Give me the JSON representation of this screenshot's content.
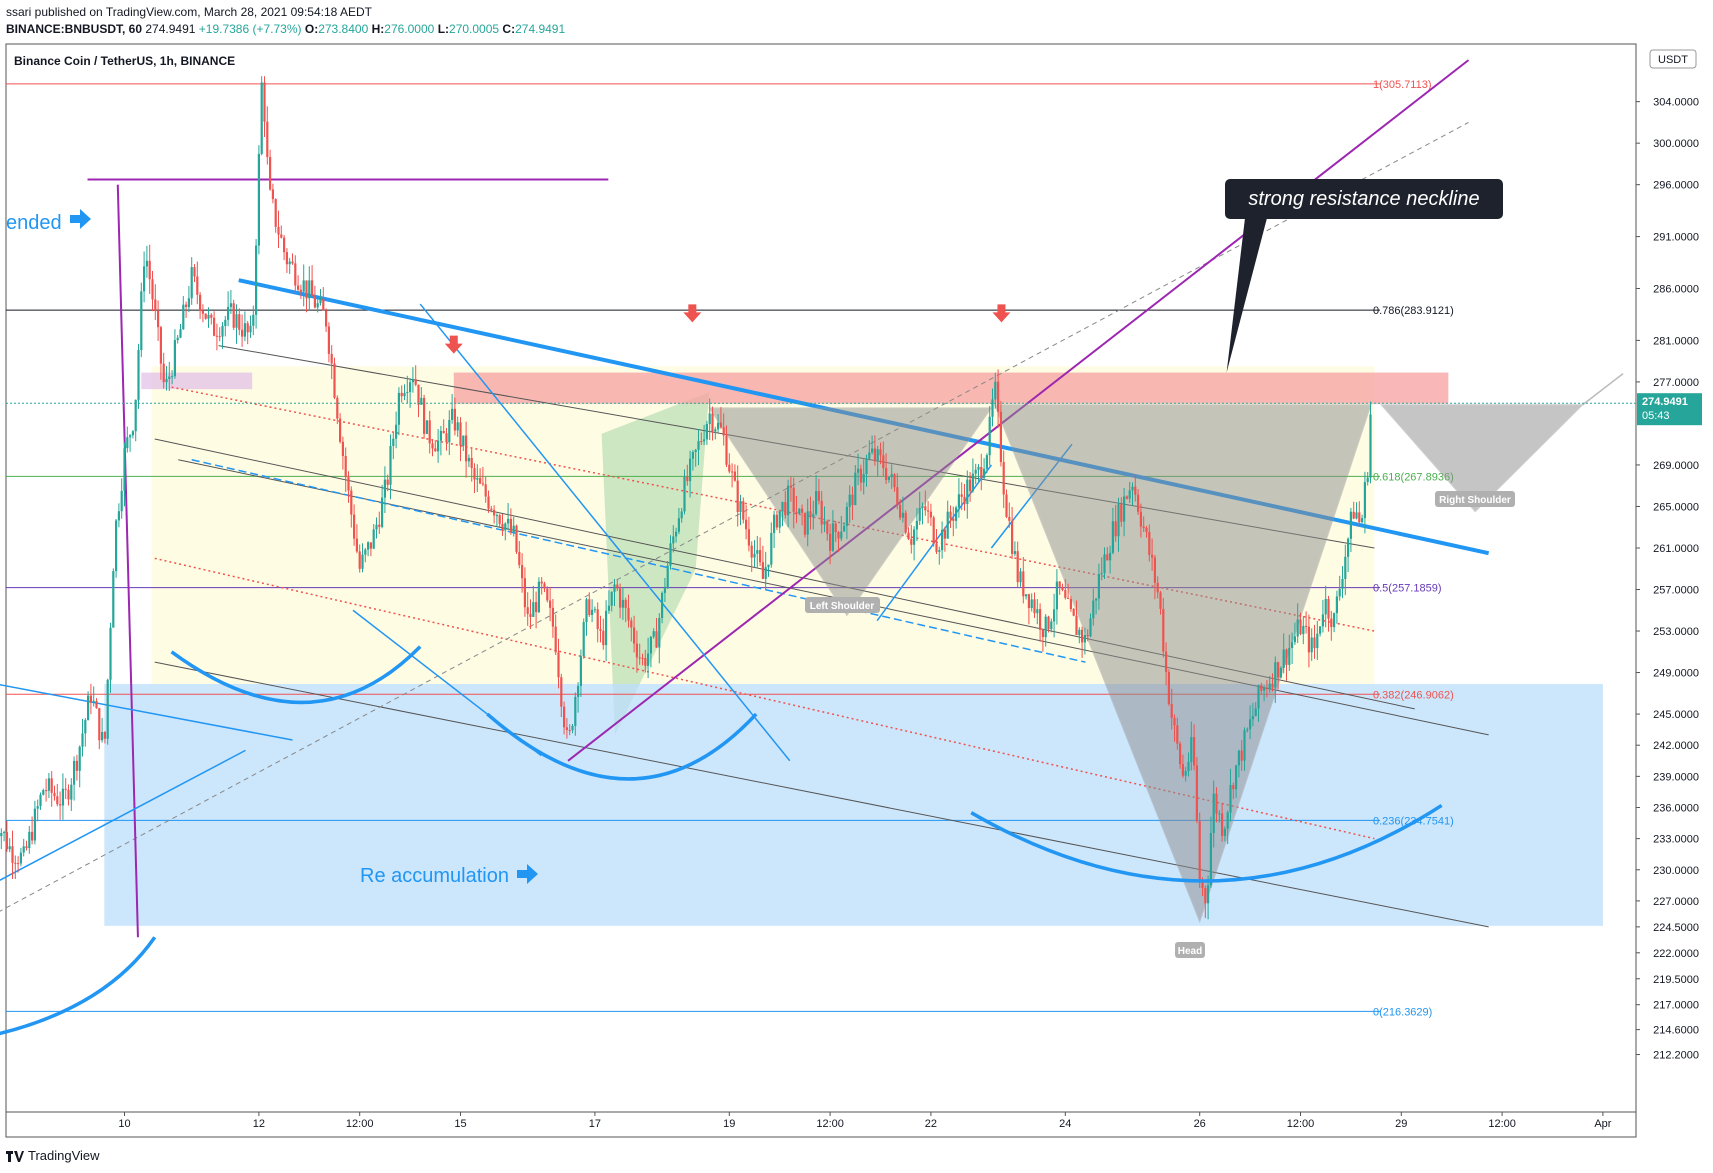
{
  "header": {
    "published": "ssari published on TradingView.com, March 28, 2021 09:54:18 AEDT",
    "symbol": "BINANCE:BNBUSDT, 60",
    "last": "274.9491",
    "change": "+19.7386 (+7.73%)",
    "o_label": "O:",
    "o": "273.8400",
    "h_label": "H:",
    "h": "276.0000",
    "l_label": "L:",
    "l": "270.0005",
    "c_label": "C:",
    "c": "274.9491"
  },
  "footer": {
    "brand": "TradingView"
  },
  "colors": {
    "up": "#26a69a",
    "down": "#ef5350",
    "blue": "#2196f3",
    "purple": "#9c27b0",
    "resistance": "#f8a5a5",
    "accum": "#bbdefb",
    "green_zone": "#c8e6c9"
  },
  "chart_data": {
    "type": "candlestick",
    "title": "Binance Coin / TetherUS, 1h, BINANCE",
    "currency": "USDT",
    "ylim": [
      210.5,
      308.5
    ],
    "y_ticks": [
      212.2,
      214.6,
      217.0,
      219.5,
      222.0,
      224.5,
      227.0,
      230.0,
      233.0,
      236.0,
      239.0,
      242.0,
      245.0,
      249.0,
      253.0,
      257.0,
      261.0,
      265.0,
      269.0,
      277.0,
      281.0,
      286.0,
      291.0,
      296.0,
      300.0,
      304.0
    ],
    "y_tick_labels": [
      "212.2000",
      "214.6000",
      "217.0000",
      "219.5000",
      "222.0000",
      "224.5000",
      "227.0000",
      "230.0000",
      "233.0000",
      "236.0000",
      "239.0000",
      "242.0000",
      "245.0000",
      "249.0000",
      "253.0000",
      "257.0000",
      "261.0000",
      "265.0000",
      "269.0000",
      "277.0000",
      "281.0000",
      "286.0000",
      "291.0000",
      "296.0000",
      "300.0000",
      "304.0000"
    ],
    "x_ticks": [
      {
        "label": "10",
        "t": 10.0
      },
      {
        "label": "12",
        "t": 12.0
      },
      {
        "label": "12:00",
        "t": 13.5
      },
      {
        "label": "15",
        "t": 15.0
      },
      {
        "label": "17",
        "t": 17.0
      },
      {
        "label": "19",
        "t": 19.0
      },
      {
        "label": "12:00",
        "t": 20.5
      },
      {
        "label": "22",
        "t": 22.0
      },
      {
        "label": "24",
        "t": 24.0
      },
      {
        "label": "26",
        "t": 26.0
      },
      {
        "label": "12:00",
        "t": 27.5
      },
      {
        "label": "29",
        "t": 29.0
      },
      {
        "label": "12:00",
        "t": 30.5
      },
      {
        "label": "Apr",
        "t": 32.0
      }
    ],
    "price_path": [
      [
        8.0,
        236.0
      ],
      [
        8.3,
        232.0
      ],
      [
        8.5,
        231.0
      ],
      [
        8.8,
        238.0
      ],
      [
        9.1,
        236.5
      ],
      [
        9.3,
        241.0
      ],
      [
        9.5,
        247.0
      ],
      [
        9.7,
        241.5
      ],
      [
        9.85,
        262.0
      ],
      [
        10.0,
        270.0
      ],
      [
        10.15,
        274.0
      ],
      [
        10.3,
        290.0
      ],
      [
        10.4,
        286.0
      ],
      [
        10.6,
        276.0
      ],
      [
        10.8,
        281.0
      ],
      [
        11.0,
        287.0
      ],
      [
        11.3,
        282.0
      ],
      [
        11.6,
        283.5
      ],
      [
        11.9,
        281.0
      ],
      [
        12.05,
        307.0
      ],
      [
        12.15,
        295.0
      ],
      [
        12.4,
        289.0
      ],
      [
        12.7,
        286.0
      ],
      [
        13.0,
        283.0
      ],
      [
        13.3,
        267.5
      ],
      [
        13.5,
        259.0
      ],
      [
        13.7,
        262.0
      ],
      [
        13.9,
        267.0
      ],
      [
        14.1,
        276.5
      ],
      [
        14.3,
        278.0
      ],
      [
        14.5,
        272.0
      ],
      [
        14.7,
        271.0
      ],
      [
        14.9,
        273.5
      ],
      [
        15.2,
        267.5
      ],
      [
        15.5,
        265.0
      ],
      [
        15.8,
        262.0
      ],
      [
        16.0,
        254.0
      ],
      [
        16.2,
        257.0
      ],
      [
        16.4,
        253.0
      ],
      [
        16.5,
        247.0
      ],
      [
        16.6,
        241.5
      ],
      [
        16.75,
        249.0
      ],
      [
        16.9,
        256.0
      ],
      [
        17.1,
        252.0
      ],
      [
        17.3,
        257.5
      ],
      [
        17.5,
        254.0
      ],
      [
        17.7,
        250.0
      ],
      [
        17.9,
        252.0
      ],
      [
        18.1,
        260.0
      ],
      [
        18.3,
        266.0
      ],
      [
        18.5,
        270.0
      ],
      [
        18.7,
        274.0
      ],
      [
        18.9,
        272.0
      ],
      [
        19.1,
        266.0
      ],
      [
        19.3,
        262.0
      ],
      [
        19.5,
        258.0
      ],
      [
        19.7,
        264.0
      ],
      [
        19.9,
        266.0
      ],
      [
        20.1,
        263.0
      ],
      [
        20.3,
        265.5
      ],
      [
        20.5,
        262.0
      ],
      [
        20.7,
        263.5
      ],
      [
        20.9,
        267.5
      ],
      [
        21.1,
        270.0
      ],
      [
        21.3,
        269.0
      ],
      [
        21.5,
        266.0
      ],
      [
        21.7,
        262.0
      ],
      [
        21.9,
        265.0
      ],
      [
        22.1,
        261.5
      ],
      [
        22.3,
        264.0
      ],
      [
        22.5,
        266.5
      ],
      [
        22.7,
        268.0
      ],
      [
        22.85,
        271.0
      ],
      [
        22.95,
        276.5
      ],
      [
        23.1,
        266.0
      ],
      [
        23.3,
        258.0
      ],
      [
        23.5,
        256.0
      ],
      [
        23.7,
        253.0
      ],
      [
        23.9,
        257.0
      ],
      [
        24.1,
        254.0
      ],
      [
        24.3,
        252.0
      ],
      [
        24.5,
        258.0
      ],
      [
        24.7,
        262.5
      ],
      [
        24.9,
        266.0
      ],
      [
        25.0,
        267.5
      ],
      [
        25.2,
        262.0
      ],
      [
        25.4,
        256.0
      ],
      [
        25.5,
        249.0
      ],
      [
        25.6,
        244.0
      ],
      [
        25.75,
        239.0
      ],
      [
        25.9,
        242.0
      ],
      [
        26.0,
        229.0
      ],
      [
        26.1,
        227.0
      ],
      [
        26.2,
        237.0
      ],
      [
        26.35,
        234.0
      ],
      [
        26.5,
        239.0
      ],
      [
        26.7,
        243.0
      ],
      [
        26.9,
        247.0
      ],
      [
        27.1,
        249.0
      ],
      [
        27.3,
        251.0
      ],
      [
        27.5,
        253.5
      ],
      [
        27.7,
        251.0
      ],
      [
        27.85,
        256.0
      ],
      [
        28.0,
        254.0
      ],
      [
        28.15,
        260.0
      ],
      [
        28.3,
        265.0
      ],
      [
        28.4,
        263.0
      ],
      [
        28.5,
        269.0
      ],
      [
        28.55,
        274.9
      ]
    ],
    "fib_levels": [
      {
        "label": "1(305.7113)",
        "value": 305.7113,
        "color": "#ef5350"
      },
      {
        "label": "0.786(283.9121)",
        "value": 283.9121,
        "color": "#131722"
      },
      {
        "label": "0.618(267.8936)",
        "value": 267.8936,
        "color": "#4caf50"
      },
      {
        "label": "0.5(257.1859)",
        "value": 257.1859,
        "color": "#673ab7"
      },
      {
        "label": "0.382(246.9062)",
        "value": 246.9062,
        "color": "#ef5350"
      },
      {
        "label": "0.236(234.7541)",
        "value": 234.7541,
        "color": "#2196f3"
      },
      {
        "label": "0(216.3629)",
        "value": 216.3629,
        "color": "#2196f3"
      }
    ],
    "current_price": {
      "value": "274.9491",
      "countdown": "05:43",
      "level": 274.9491
    },
    "annotations": {
      "callout": "strong resistance neckline",
      "left_shoulder": "Left Shoulder",
      "head": "Head",
      "right_shoulder": "Right Shoulder",
      "ended": "ended",
      "reaccumulation": "Re accumulation"
    },
    "zones": {
      "resistance": [
        274.9,
        277.9
      ],
      "accumulation": [
        224.6,
        247.9
      ]
    }
  }
}
